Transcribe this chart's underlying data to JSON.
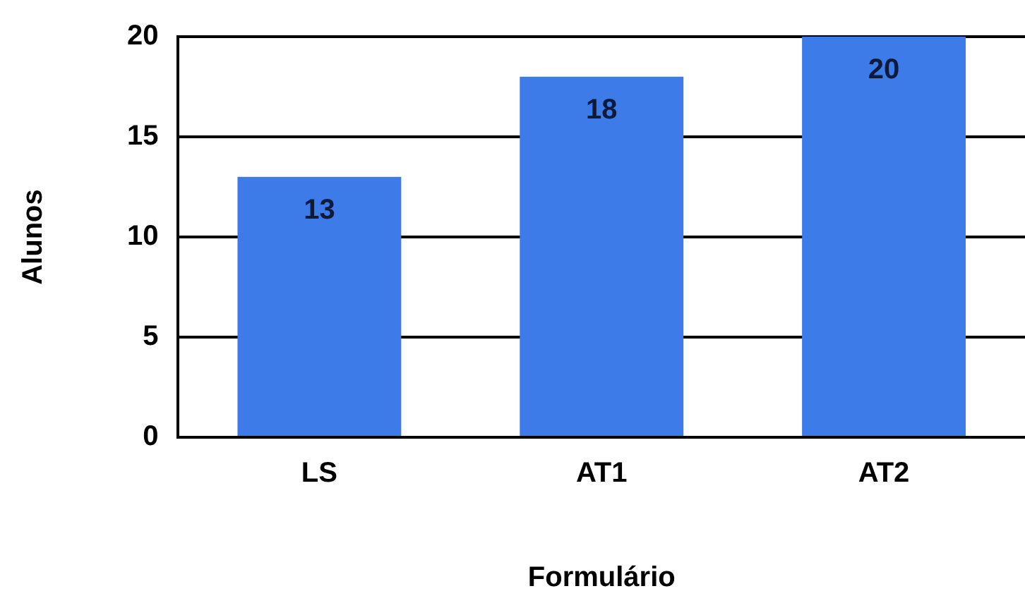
{
  "chart_data": {
    "type": "bar",
    "xlabel": "Formulário",
    "ylabel": "Alunos",
    "categories": [
      "LS",
      "AT1",
      "AT2"
    ],
    "values": [
      13,
      18,
      20
    ],
    "color": "#3d7be8",
    "ylim": [
      0,
      20
    ],
    "yticks": [
      0,
      5,
      10,
      15,
      20
    ],
    "grid": "y",
    "legend": false,
    "data_labels": true
  }
}
